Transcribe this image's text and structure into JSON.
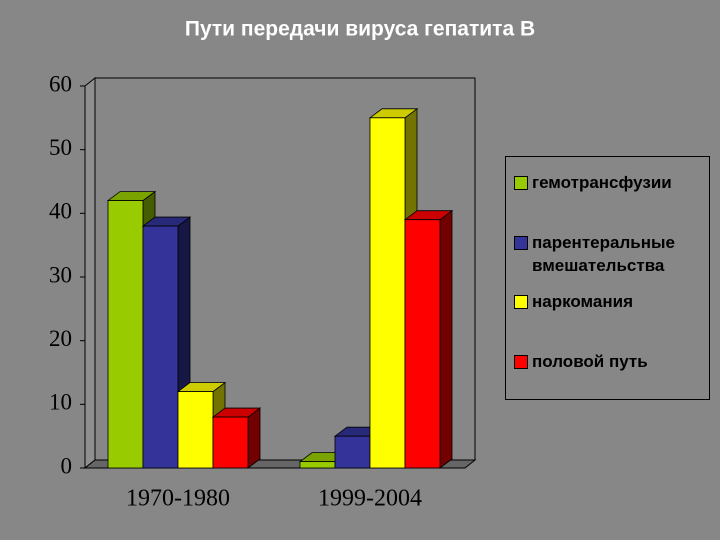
{
  "chart_data": {
    "type": "bar3d",
    "title": "Пути передачи вируса гепатита В",
    "categories": [
      "1970-1980",
      "1999-2004"
    ],
    "series": [
      {
        "name": "гемотрансфузии",
        "color": "#99cc00",
        "values": [
          42,
          1
        ]
      },
      {
        "name": "парентеральные вмешательства",
        "color": "#333399",
        "values": [
          38,
          5
        ]
      },
      {
        "name": "наркомания",
        "color": "#ffff00",
        "values": [
          12,
          55
        ]
      },
      {
        "name": "половой путь",
        "color": "#ff0000",
        "values": [
          8,
          39
        ]
      }
    ],
    "ylim": [
      0,
      60
    ],
    "yticks": [
      0,
      10,
      20,
      30,
      40,
      50,
      60
    ],
    "legend": "right"
  }
}
